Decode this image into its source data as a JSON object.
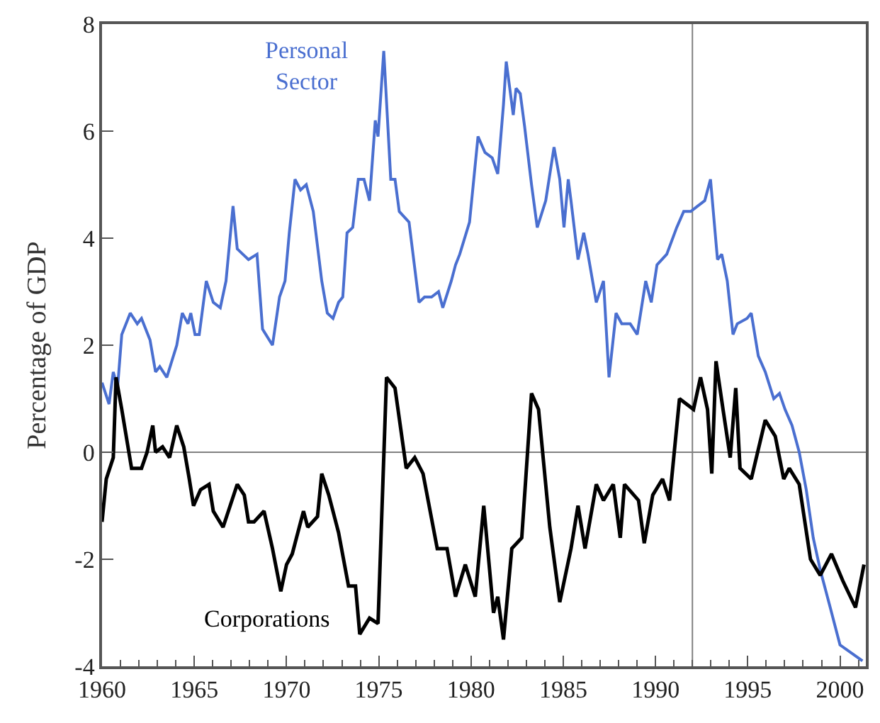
{
  "chart_data": {
    "type": "line",
    "ylabel": "Percentage of GDP",
    "xlim": [
      1960,
      2001.4
    ],
    "ylim": [
      -4,
      8
    ],
    "xticks": [
      1960,
      {
        "value": 1961,
        "label": null
      },
      {
        "value": 1962,
        "label": null
      },
      {
        "value": 1963,
        "label": null
      },
      {
        "value": 1964,
        "label": null
      },
      1965,
      {
        "value": 1966,
        "label": null
      },
      {
        "value": 1967,
        "label": null
      },
      {
        "value": 1968,
        "label": null
      },
      {
        "value": 1969,
        "label": null
      },
      1970,
      {
        "value": 1971,
        "label": null
      },
      {
        "value": 1972,
        "label": null
      },
      {
        "value": 1973,
        "label": null
      },
      {
        "value": 1974,
        "label": null
      },
      1975,
      {
        "value": 1976,
        "label": null
      },
      {
        "value": 1977,
        "label": null
      },
      {
        "value": 1978,
        "label": null
      },
      {
        "value": 1979,
        "label": null
      },
      1980,
      {
        "value": 1981,
        "label": null
      },
      {
        "value": 1982,
        "label": null
      },
      {
        "value": 1983,
        "label": null
      },
      {
        "value": 1984,
        "label": null
      },
      1985,
      {
        "value": 1986,
        "label": null
      },
      {
        "value": 1987,
        "label": null
      },
      {
        "value": 1988,
        "label": null
      },
      {
        "value": 1989,
        "label": null
      },
      1990,
      {
        "value": 1991,
        "label": null
      },
      {
        "value": 1992,
        "label": null
      },
      {
        "value": 1993,
        "label": null
      },
      {
        "value": 1994,
        "label": null
      },
      1995,
      {
        "value": 1996,
        "label": null
      },
      {
        "value": 1997,
        "label": null
      },
      {
        "value": 1998,
        "label": null
      },
      {
        "value": 1999,
        "label": null
      },
      2000,
      {
        "value": 2001,
        "label": null
      }
    ],
    "yticks": [
      -4,
      -2,
      0,
      2,
      4,
      6,
      8
    ],
    "grid": false,
    "legend": false,
    "marker": "none",
    "line_style": "solid",
    "ref_lines": [
      {
        "axis": "y",
        "value": 0,
        "color": "#808080"
      },
      {
        "axis": "x",
        "value": 1992,
        "color": "#808080"
      }
    ],
    "series": [
      {
        "name": "Personal\nSector",
        "color": "#4a6fd0",
        "x": [
          1960.0,
          1960.38,
          1960.61,
          1960.84,
          1961.07,
          1961.53,
          1961.91,
          1962.14,
          1962.6,
          1962.9,
          1963.13,
          1963.51,
          1964.05,
          1964.35,
          1964.66,
          1964.81,
          1965.04,
          1965.27,
          1965.65,
          1966.03,
          1966.41,
          1966.72,
          1967.1,
          1967.33,
          1967.63,
          1967.94,
          1968.4,
          1968.7,
          1969.24,
          1969.62,
          1969.92,
          1970.15,
          1970.46,
          1970.76,
          1971.07,
          1971.45,
          1971.91,
          1972.21,
          1972.52,
          1972.82,
          1973.05,
          1973.28,
          1973.59,
          1973.89,
          1974.2,
          1974.5,
          1974.81,
          1974.96,
          1975.27,
          1975.65,
          1975.88,
          1976.11,
          1976.64,
          1977.18,
          1977.48,
          1977.86,
          1978.24,
          1978.47,
          1978.93,
          1979.16,
          1979.39,
          1979.92,
          1980.38,
          1980.76,
          1981.15,
          1981.45,
          1981.76,
          1981.91,
          1982.29,
          1982.44,
          1982.67,
          1982.9,
          1983.28,
          1983.59,
          1984.05,
          1984.5,
          1984.81,
          1985.04,
          1985.27,
          1985.42,
          1985.8,
          1986.11,
          1986.34,
          1986.79,
          1987.18,
          1987.48,
          1987.86,
          1988.17,
          1988.63,
          1989.01,
          1989.47,
          1989.77,
          1990.08,
          1990.61,
          1991.15,
          1991.53,
          1991.91,
          1992.29,
          1992.67,
          1992.98,
          1993.36,
          1993.59,
          1993.89,
          1994.2,
          1994.43,
          1994.96,
          1995.19,
          1995.57,
          1995.95,
          1996.41,
          1996.72,
          1997.02,
          1997.4,
          1997.79,
          1998.17,
          1998.55,
          1998.93,
          1999.47,
          2000.0,
          2001.22
        ],
        "values": [
          1.3,
          0.9,
          1.5,
          1.2,
          2.2,
          2.6,
          2.4,
          2.5,
          2.1,
          1.5,
          1.6,
          1.4,
          2.0,
          2.6,
          2.4,
          2.6,
          2.2,
          2.2,
          3.2,
          2.8,
          2.7,
          3.2,
          4.6,
          3.8,
          3.7,
          3.6,
          3.7,
          2.3,
          2.0,
          2.9,
          3.2,
          4.1,
          5.1,
          4.9,
          5.0,
          4.5,
          3.2,
          2.6,
          2.5,
          2.8,
          2.9,
          4.1,
          4.2,
          5.1,
          5.1,
          4.7,
          6.2,
          5.9,
          7.5,
          5.1,
          5.1,
          4.5,
          4.3,
          2.8,
          2.9,
          2.9,
          3.0,
          2.7,
          3.2,
          3.5,
          3.7,
          4.3,
          5.9,
          5.6,
          5.5,
          5.2,
          6.5,
          7.3,
          6.3,
          6.8,
          6.7,
          6.1,
          5.0,
          4.2,
          4.7,
          5.7,
          5.1,
          4.2,
          5.1,
          4.7,
          3.6,
          4.1,
          3.7,
          2.8,
          3.2,
          1.4,
          2.6,
          2.4,
          2.4,
          2.2,
          3.2,
          2.8,
          3.5,
          3.7,
          4.2,
          4.5,
          4.5,
          4.6,
          4.7,
          5.1,
          3.6,
          3.7,
          3.2,
          2.2,
          2.4,
          2.5,
          2.6,
          1.8,
          1.5,
          1.0,
          1.1,
          0.8,
          0.5,
          0.0,
          -0.7,
          -1.6,
          -2.2,
          -2.9,
          -3.6,
          -3.9
        ]
      },
      {
        "name": "Corporations",
        "color": "#000000",
        "x": [
          1960.0,
          1960.23,
          1960.61,
          1960.76,
          1961.07,
          1961.6,
          1962.14,
          1962.44,
          1962.75,
          1962.9,
          1963.28,
          1963.66,
          1964.05,
          1964.43,
          1964.73,
          1964.96,
          1965.34,
          1965.8,
          1966.03,
          1966.56,
          1967.33,
          1967.71,
          1967.94,
          1968.24,
          1968.78,
          1969.24,
          1969.69,
          1970.0,
          1970.31,
          1970.92,
          1971.15,
          1971.68,
          1971.91,
          1972.29,
          1972.82,
          1973.36,
          1973.74,
          1973.97,
          1974.5,
          1974.96,
          1975.42,
          1975.88,
          1976.49,
          1976.95,
          1977.4,
          1978.17,
          1978.7,
          1979.16,
          1979.69,
          1980.23,
          1980.69,
          1981.22,
          1981.45,
          1981.76,
          1982.21,
          1982.75,
          1983.28,
          1983.66,
          1984.27,
          1984.81,
          1985.42,
          1985.8,
          1986.18,
          1986.79,
          1987.18,
          1987.71,
          1988.09,
          1988.32,
          1989.08,
          1989.39,
          1989.85,
          1990.38,
          1990.76,
          1991.3,
          1992.06,
          1992.44,
          1992.82,
          1993.05,
          1993.28,
          1993.66,
          1994.05,
          1994.35,
          1994.58,
          1995.19,
          1995.95,
          1996.49,
          1996.95,
          1997.25,
          1997.79,
          1998.4,
          1998.93,
          1999.54,
          2000.15,
          2000.84,
          2001.3
        ],
        "values": [
          -1.3,
          -0.5,
          -0.1,
          1.4,
          0.8,
          -0.3,
          -0.3,
          0.0,
          0.5,
          0.0,
          0.1,
          -0.1,
          0.5,
          0.1,
          -0.5,
          -1.0,
          -0.7,
          -0.6,
          -1.1,
          -1.4,
          -0.6,
          -0.8,
          -1.3,
          -1.3,
          -1.1,
          -1.8,
          -2.6,
          -2.1,
          -1.9,
          -1.1,
          -1.4,
          -1.2,
          -0.4,
          -0.8,
          -1.5,
          -2.5,
          -2.5,
          -3.4,
          -3.1,
          -3.2,
          1.4,
          1.2,
          -0.3,
          -0.1,
          -0.4,
          -1.8,
          -1.8,
          -2.7,
          -2.1,
          -2.7,
          -1.0,
          -3.0,
          -2.7,
          -3.5,
          -1.8,
          -1.6,
          1.1,
          0.8,
          -1.4,
          -2.8,
          -1.8,
          -1.0,
          -1.8,
          -0.6,
          -0.9,
          -0.6,
          -1.6,
          -0.6,
          -0.9,
          -1.7,
          -0.8,
          -0.5,
          -0.9,
          1.0,
          0.8,
          1.4,
          0.8,
          -0.4,
          1.7,
          0.8,
          -0.1,
          1.2,
          -0.3,
          -0.5,
          0.6,
          0.3,
          -0.5,
          -0.3,
          -0.6,
          -2.0,
          -2.3,
          -1.9,
          -2.4,
          -2.9,
          -2.1
        ]
      }
    ]
  }
}
